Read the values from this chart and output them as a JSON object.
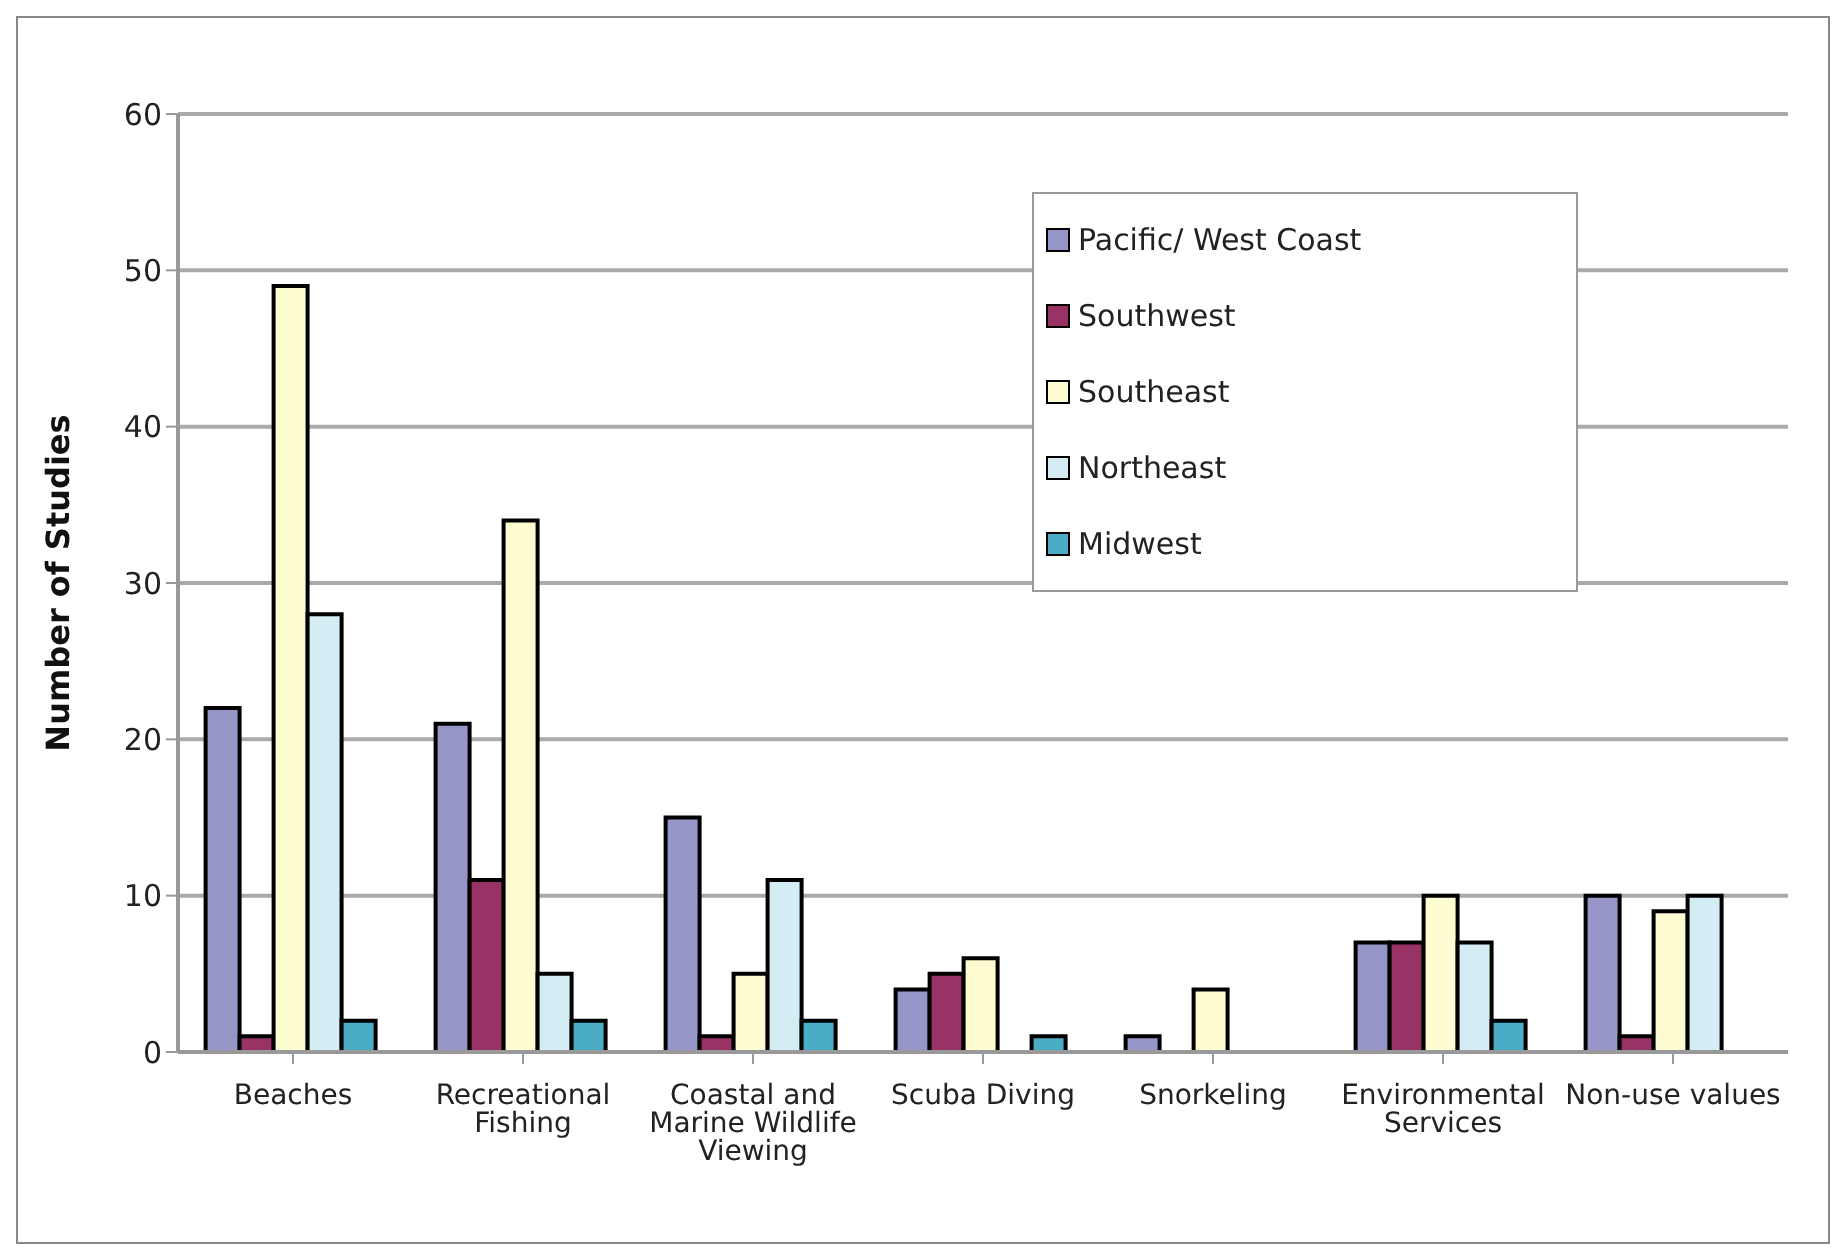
{
  "chart_data": {
    "type": "bar",
    "ylabel": "Number of Studies",
    "categories": [
      "Beaches",
      "Recreational Fishing",
      "Coastal and Marine Wildlife Viewing",
      "Scuba Diving",
      "Snorkeling",
      "Environmental Services",
      "Non-use values"
    ],
    "series": [
      {
        "name": "Pacific/ West Coast",
        "color": "#9595c8",
        "values": [
          22,
          21,
          15,
          4,
          1,
          7,
          10
        ]
      },
      {
        "name": "Southwest",
        "color": "#993366",
        "values": [
          1,
          11,
          1,
          5,
          null,
          7,
          1
        ]
      },
      {
        "name": "Southeast",
        "color": "#fdfbd0",
        "values": [
          49,
          34,
          5,
          6,
          4,
          10,
          9
        ]
      },
      {
        "name": "Northeast",
        "color": "#d4ecf3",
        "values": [
          28,
          5,
          11,
          null,
          null,
          7,
          10
        ]
      },
      {
        "name": "Midwest",
        "color": "#4bacc6",
        "values": [
          2,
          2,
          2,
          1,
          null,
          2,
          null
        ]
      }
    ],
    "ylim": [
      0,
      60
    ],
    "yticks": [
      0,
      10,
      20,
      30,
      40,
      50,
      60
    ],
    "grid": "y",
    "legend": "top right"
  }
}
